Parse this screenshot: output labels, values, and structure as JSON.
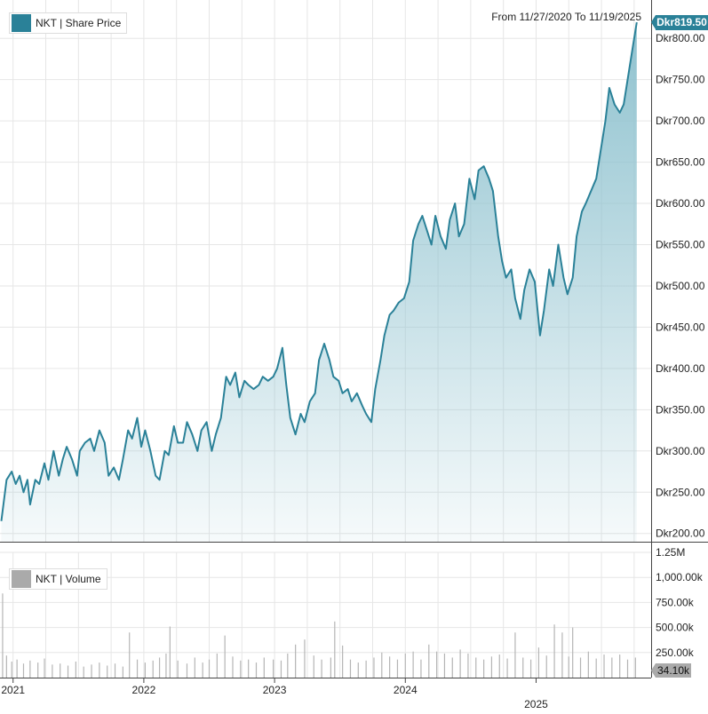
{
  "price_legend": "NKT | Share Price",
  "volume_legend": "NKT | Volume",
  "date_range": "From 11/27/2020 To 11/19/2025",
  "last_price_label": "Dkr819.50",
  "last_volume_label": "34.10k",
  "colors": {
    "price": "#2a8198",
    "price_fill_top": "#8fc2cf",
    "volume": "#b5b5b5",
    "grid": "#e6e6e6"
  },
  "chart_data": [
    {
      "type": "area",
      "series": [
        {
          "name": "NKT | Share Price",
          "values": [
            [
              2020.91,
              215
            ],
            [
              2020.95,
              265
            ],
            [
              2020.99,
              275
            ],
            [
              2021.02,
              260
            ],
            [
              2021.05,
              270
            ],
            [
              2021.08,
              250
            ],
            [
              2021.11,
              265
            ],
            [
              2021.13,
              235
            ],
            [
              2021.17,
              265
            ],
            [
              2021.2,
              260
            ],
            [
              2021.24,
              285
            ],
            [
              2021.27,
              265
            ],
            [
              2021.31,
              300
            ],
            [
              2021.35,
              270
            ],
            [
              2021.38,
              290
            ],
            [
              2021.41,
              305
            ],
            [
              2021.45,
              290
            ],
            [
              2021.49,
              270
            ],
            [
              2021.51,
              300
            ],
            [
              2021.55,
              310
            ],
            [
              2021.59,
              315
            ],
            [
              2021.62,
              300
            ],
            [
              2021.66,
              325
            ],
            [
              2021.7,
              310
            ],
            [
              2021.73,
              270
            ],
            [
              2021.77,
              280
            ],
            [
              2021.81,
              265
            ],
            [
              2021.84,
              290
            ],
            [
              2021.88,
              325
            ],
            [
              2021.91,
              315
            ],
            [
              2021.95,
              340
            ],
            [
              2021.98,
              305
            ],
            [
              2022.01,
              325
            ],
            [
              2022.05,
              300
            ],
            [
              2022.09,
              270
            ],
            [
              2022.12,
              265
            ],
            [
              2022.16,
              300
            ],
            [
              2022.19,
              295
            ],
            [
              2022.23,
              330
            ],
            [
              2022.26,
              310
            ],
            [
              2022.3,
              310
            ],
            [
              2022.33,
              335
            ],
            [
              2022.37,
              320
            ],
            [
              2022.41,
              300
            ],
            [
              2022.44,
              325
            ],
            [
              2022.48,
              335
            ],
            [
              2022.52,
              300
            ],
            [
              2022.55,
              320
            ],
            [
              2022.59,
              340
            ],
            [
              2022.63,
              390
            ],
            [
              2022.66,
              380
            ],
            [
              2022.7,
              395
            ],
            [
              2022.73,
              365
            ],
            [
              2022.77,
              385
            ],
            [
              2022.8,
              380
            ],
            [
              2022.84,
              375
            ],
            [
              2022.88,
              380
            ],
            [
              2022.91,
              390
            ],
            [
              2022.95,
              385
            ],
            [
              2022.99,
              390
            ],
            [
              2023.02,
              400
            ],
            [
              2023.06,
              425
            ],
            [
              2023.09,
              380
            ],
            [
              2023.12,
              340
            ],
            [
              2023.16,
              320
            ],
            [
              2023.2,
              345
            ],
            [
              2023.23,
              335
            ],
            [
              2023.27,
              360
            ],
            [
              2023.31,
              370
            ],
            [
              2023.34,
              410
            ],
            [
              2023.38,
              430
            ],
            [
              2023.42,
              410
            ],
            [
              2023.45,
              390
            ],
            [
              2023.49,
              385
            ],
            [
              2023.52,
              370
            ],
            [
              2023.56,
              375
            ],
            [
              2023.59,
              360
            ],
            [
              2023.63,
              370
            ],
            [
              2023.67,
              355
            ],
            [
              2023.7,
              345
            ],
            [
              2023.74,
              335
            ],
            [
              2023.77,
              375
            ],
            [
              2023.81,
              410
            ],
            [
              2023.84,
              440
            ],
            [
              2023.88,
              465
            ],
            [
              2023.91,
              470
            ],
            [
              2023.95,
              480
            ],
            [
              2023.99,
              485
            ],
            [
              2024.03,
              505
            ],
            [
              2024.06,
              555
            ],
            [
              2024.1,
              575
            ],
            [
              2024.13,
              585
            ],
            [
              2024.17,
              565
            ],
            [
              2024.2,
              550
            ],
            [
              2024.23,
              585
            ],
            [
              2024.27,
              560
            ],
            [
              2024.31,
              545
            ],
            [
              2024.34,
              580
            ],
            [
              2024.38,
              600
            ],
            [
              2024.41,
              560
            ],
            [
              2024.45,
              575
            ],
            [
              2024.49,
              630
            ],
            [
              2024.53,
              605
            ],
            [
              2024.56,
              640
            ],
            [
              2024.6,
              645
            ],
            [
              2024.64,
              630
            ],
            [
              2024.67,
              615
            ],
            [
              2024.71,
              560
            ],
            [
              2024.74,
              530
            ],
            [
              2024.77,
              510
            ],
            [
              2024.81,
              520
            ],
            [
              2024.84,
              485
            ],
            [
              2024.88,
              460
            ],
            [
              2024.91,
              495
            ],
            [
              2024.95,
              520
            ],
            [
              2024.99,
              505
            ],
            [
              2025.03,
              440
            ],
            [
              2025.06,
              470
            ],
            [
              2025.1,
              520
            ],
            [
              2025.13,
              500
            ],
            [
              2025.17,
              550
            ],
            [
              2025.21,
              510
            ],
            [
              2025.24,
              490
            ],
            [
              2025.28,
              510
            ],
            [
              2025.31,
              560
            ],
            [
              2025.35,
              590
            ],
            [
              2025.38,
              600
            ],
            [
              2025.42,
              615
            ],
            [
              2025.46,
              630
            ],
            [
              2025.49,
              660
            ],
            [
              2025.53,
              700
            ],
            [
              2025.56,
              740
            ],
            [
              2025.6,
              720
            ],
            [
              2025.64,
              710
            ],
            [
              2025.67,
              720
            ],
            [
              2025.7,
              750
            ],
            [
              2025.74,
              790
            ],
            [
              2025.77,
              819.5
            ]
          ]
        }
      ],
      "xlim": [
        2020.9,
        2025.88
      ],
      "ylim": [
        190,
        825
      ],
      "y_ticks": [
        200,
        250,
        300,
        350,
        400,
        450,
        500,
        550,
        600,
        650,
        700,
        750,
        800
      ],
      "y_tick_prefix": "Dkr",
      "x_ticks": [
        {
          "x": 2021.0,
          "label": "2021"
        },
        {
          "x": 2022.0,
          "label": "2022"
        },
        {
          "x": 2023.0,
          "label": "2023"
        },
        {
          "x": 2024.0,
          "label": "2024"
        },
        {
          "x": 2025.0,
          "label": "2025"
        }
      ],
      "grid": true,
      "legend": "top-left"
    },
    {
      "type": "bar",
      "series": [
        {
          "name": "NKT | Volume",
          "values": [
            [
              2020.92,
              840
            ],
            [
              2020.95,
              220
            ],
            [
              2020.99,
              160
            ],
            [
              2021.03,
              180
            ],
            [
              2021.08,
              140
            ],
            [
              2021.13,
              170
            ],
            [
              2021.19,
              150
            ],
            [
              2021.24,
              190
            ],
            [
              2021.3,
              130
            ],
            [
              2021.36,
              140
            ],
            [
              2021.42,
              120
            ],
            [
              2021.48,
              160
            ],
            [
              2021.54,
              110
            ],
            [
              2021.6,
              130
            ],
            [
              2021.66,
              150
            ],
            [
              2021.72,
              120
            ],
            [
              2021.78,
              140
            ],
            [
              2021.84,
              110
            ],
            [
              2021.89,
              450
            ],
            [
              2021.95,
              180
            ],
            [
              2022.01,
              150
            ],
            [
              2022.07,
              170
            ],
            [
              2022.12,
              200
            ],
            [
              2022.17,
              240
            ],
            [
              2022.2,
              510
            ],
            [
              2022.26,
              170
            ],
            [
              2022.33,
              140
            ],
            [
              2022.39,
              200
            ],
            [
              2022.45,
              150
            ],
            [
              2022.5,
              180
            ],
            [
              2022.56,
              240
            ],
            [
              2022.62,
              420
            ],
            [
              2022.68,
              210
            ],
            [
              2022.74,
              170
            ],
            [
              2022.8,
              180
            ],
            [
              2022.86,
              150
            ],
            [
              2022.92,
              200
            ],
            [
              2022.99,
              180
            ],
            [
              2023.05,
              170
            ],
            [
              2023.1,
              240
            ],
            [
              2023.16,
              330
            ],
            [
              2023.23,
              380
            ],
            [
              2023.3,
              220
            ],
            [
              2023.36,
              180
            ],
            [
              2023.43,
              200
            ],
            [
              2023.46,
              560
            ],
            [
              2023.52,
              320
            ],
            [
              2023.58,
              180
            ],
            [
              2023.64,
              150
            ],
            [
              2023.7,
              170
            ],
            [
              2023.76,
              200
            ],
            [
              2023.82,
              250
            ],
            [
              2023.88,
              210
            ],
            [
              2023.94,
              180
            ],
            [
              2024.0,
              240
            ],
            [
              2024.06,
              260
            ],
            [
              2024.12,
              180
            ],
            [
              2024.18,
              330
            ],
            [
              2024.24,
              260
            ],
            [
              2024.3,
              240
            ],
            [
              2024.36,
              200
            ],
            [
              2024.42,
              280
            ],
            [
              2024.48,
              240
            ],
            [
              2024.54,
              200
            ],
            [
              2024.6,
              180
            ],
            [
              2024.66,
              210
            ],
            [
              2024.72,
              230
            ],
            [
              2024.78,
              190
            ],
            [
              2024.84,
              450
            ],
            [
              2024.9,
              200
            ],
            [
              2024.96,
              180
            ],
            [
              2025.02,
              300
            ],
            [
              2025.08,
              220
            ],
            [
              2025.14,
              530
            ],
            [
              2025.2,
              450
            ],
            [
              2025.25,
              210
            ],
            [
              2025.28,
              500
            ],
            [
              2025.34,
              200
            ],
            [
              2025.4,
              260
            ],
            [
              2025.46,
              190
            ],
            [
              2025.52,
              230
            ],
            [
              2025.58,
              200
            ],
            [
              2025.64,
              230
            ],
            [
              2025.7,
              180
            ],
            [
              2025.76,
              200
            ]
          ]
        }
      ],
      "unit": "k",
      "ylim": [
        0,
        1250
      ],
      "y_ticks": [
        {
          "v": 250,
          "label": "250.00k"
        },
        {
          "v": 500,
          "label": "500.00k"
        },
        {
          "v": 750,
          "label": "750.00k"
        },
        {
          "v": 1000,
          "label": "1,000.00k"
        },
        {
          "v": 1250,
          "label": "1.25M"
        }
      ],
      "legend": "top-left"
    }
  ]
}
